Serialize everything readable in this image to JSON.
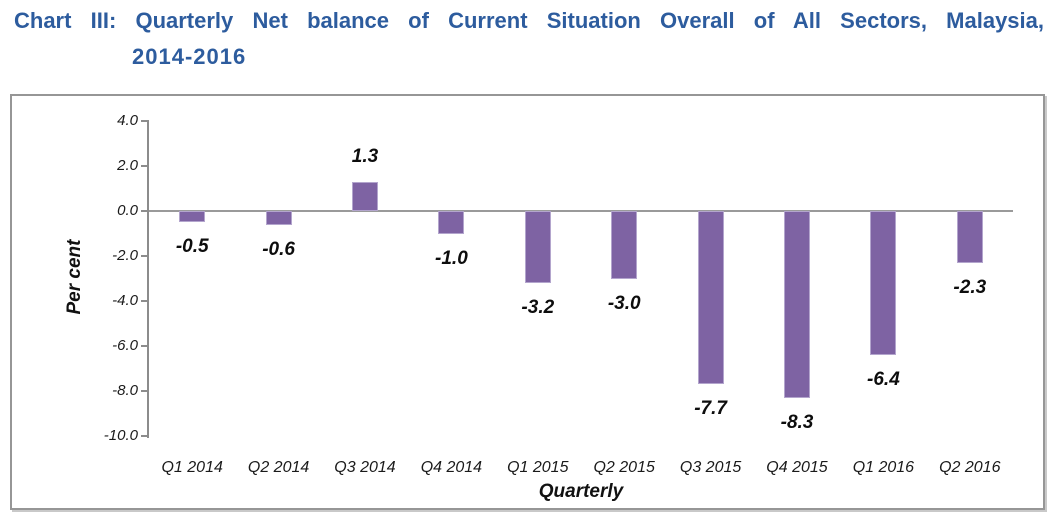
{
  "title": {
    "line1": "Chart III: Quarterly Net balance of Current Situation Overall of All Sectors, Malaysia,",
    "line2": "2014-2016",
    "color": "#2D5C9E"
  },
  "chart_data": {
    "type": "bar",
    "categories": [
      "Q1 2014",
      "Q2 2014",
      "Q3 2014",
      "Q4 2014",
      "Q1 2015",
      "Q2 2015",
      "Q3 2015",
      "Q4 2015",
      "Q1 2016",
      "Q2 2016"
    ],
    "values": [
      -0.5,
      -0.6,
      1.3,
      -1.0,
      -3.2,
      -3.0,
      -7.7,
      -8.3,
      -6.4,
      -2.3
    ],
    "data_labels": [
      "-0.5",
      "-0.6",
      "1.3",
      "-1.0",
      "-3.2",
      "-3.0",
      "-7.7",
      "-8.3",
      "-6.4",
      "-2.3"
    ],
    "xlabel": "Quarterly",
    "ylabel": "Per cent",
    "ylim": [
      -10.0,
      4.0
    ],
    "ytick_step": 2.0,
    "yticks": [
      "4.0",
      "2.0",
      "0.0",
      "-2.0",
      "-4.0",
      "-6.0",
      "-8.0",
      "-10.0"
    ],
    "grid": false,
    "legend": "none",
    "bar_color": "#7E63A3",
    "bar_border_color": "#B3A5CD",
    "axis_color": "#8C8C8C"
  }
}
